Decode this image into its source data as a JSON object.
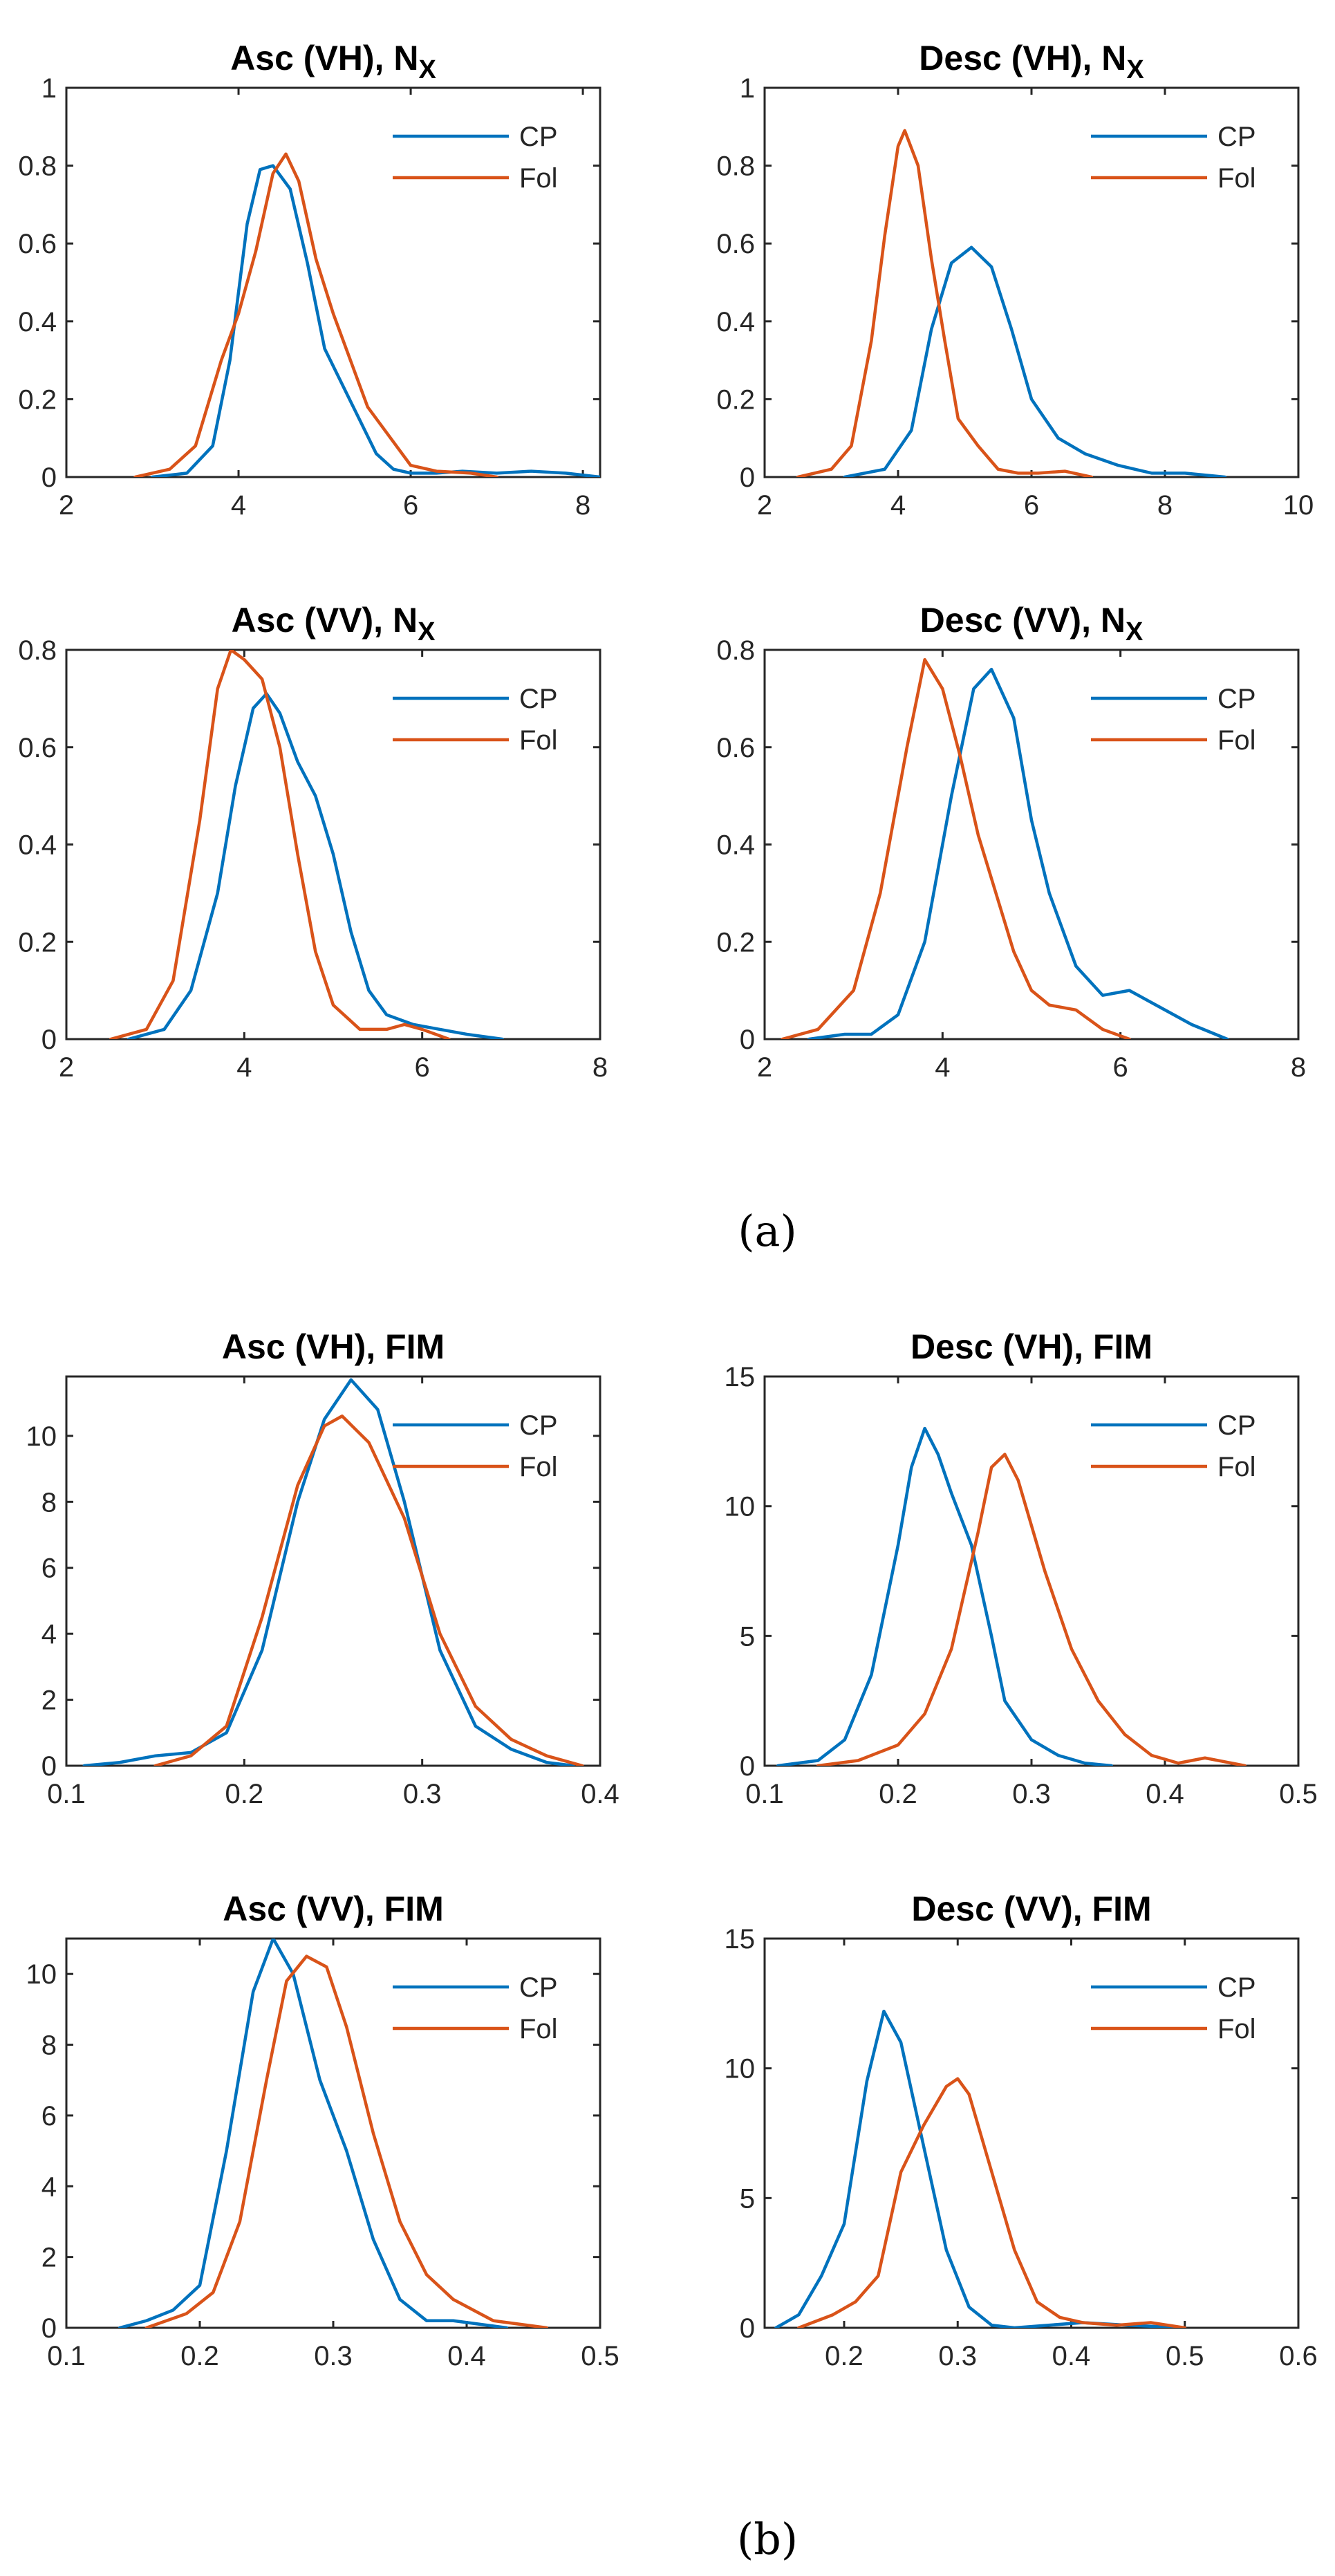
{
  "colors": {
    "cp": "#0072BD",
    "fol": "#D95319"
  },
  "panel_labels": {
    "a": "(a)",
    "b": "(b)"
  },
  "chart_data": [
    {
      "type": "line",
      "title": "Asc (VH), N",
      "title_subscript": "X",
      "xlim": [
        2,
        8.2
      ],
      "ylim": [
        0,
        1
      ],
      "xticks": [
        2,
        4,
        6,
        8
      ],
      "xtick_labels": [
        "2",
        "4",
        "6",
        "8"
      ],
      "yticks": [
        0,
        0.2,
        0.4,
        0.6,
        0.8,
        1
      ],
      "ytick_labels": [
        "0",
        "0.2",
        "0.4",
        "0.6",
        "0.8",
        "1"
      ],
      "legend": [
        "CP",
        "Fol"
      ],
      "series": [
        {
          "name": "CP",
          "color": "#0072BD",
          "x": [
            3.0,
            3.4,
            3.7,
            3.9,
            4.1,
            4.25,
            4.4,
            4.6,
            4.8,
            5.0,
            5.2,
            5.4,
            5.6,
            5.8,
            6.0,
            6.3,
            6.6,
            7.0,
            7.4,
            7.8,
            8.2
          ],
          "y": [
            0,
            0.01,
            0.08,
            0.3,
            0.65,
            0.79,
            0.8,
            0.74,
            0.55,
            0.33,
            0.24,
            0.15,
            0.06,
            0.02,
            0.01,
            0.01,
            0.015,
            0.01,
            0.015,
            0.01,
            0
          ]
        },
        {
          "name": "Fol",
          "color": "#D95319",
          "x": [
            2.8,
            3.2,
            3.5,
            3.8,
            4.0,
            4.2,
            4.4,
            4.55,
            4.7,
            4.9,
            5.1,
            5.3,
            5.5,
            5.7,
            6.0,
            6.3,
            6.7,
            7.0
          ],
          "y": [
            0,
            0.02,
            0.08,
            0.3,
            0.42,
            0.58,
            0.78,
            0.83,
            0.76,
            0.56,
            0.42,
            0.3,
            0.18,
            0.12,
            0.03,
            0.015,
            0.01,
            0
          ]
        }
      ]
    },
    {
      "type": "line",
      "title": "Desc (VH), N",
      "title_subscript": "X",
      "xlim": [
        2,
        10
      ],
      "ylim": [
        0,
        1
      ],
      "xticks": [
        2,
        4,
        6,
        8,
        10
      ],
      "xtick_labels": [
        "2",
        "4",
        "6",
        "8",
        "10"
      ],
      "yticks": [
        0,
        0.2,
        0.4,
        0.6,
        0.8,
        1
      ],
      "ytick_labels": [
        "0",
        "0.2",
        "0.4",
        "0.6",
        "0.8",
        "1"
      ],
      "legend": [
        "CP",
        "Fol"
      ],
      "series": [
        {
          "name": "CP",
          "color": "#0072BD",
          "x": [
            3.2,
            3.8,
            4.2,
            4.5,
            4.8,
            5.1,
            5.4,
            5.7,
            6.0,
            6.4,
            6.8,
            7.3,
            7.8,
            8.3,
            8.9
          ],
          "y": [
            0,
            0.02,
            0.12,
            0.38,
            0.55,
            0.59,
            0.54,
            0.38,
            0.2,
            0.1,
            0.06,
            0.03,
            0.01,
            0.01,
            0
          ]
        },
        {
          "name": "Fol",
          "color": "#D95319",
          "x": [
            2.5,
            3.0,
            3.3,
            3.6,
            3.8,
            4.0,
            4.1,
            4.3,
            4.5,
            4.7,
            4.9,
            5.2,
            5.5,
            5.8,
            6.1,
            6.5,
            6.9
          ],
          "y": [
            0,
            0.02,
            0.08,
            0.35,
            0.62,
            0.85,
            0.89,
            0.8,
            0.56,
            0.35,
            0.15,
            0.08,
            0.02,
            0.01,
            0.01,
            0.015,
            0
          ]
        }
      ]
    },
    {
      "type": "line",
      "title": "Asc (VV), N",
      "title_subscript": "X",
      "xlim": [
        2,
        8
      ],
      "ylim": [
        0,
        0.8
      ],
      "xticks": [
        2,
        4,
        6,
        8
      ],
      "xtick_labels": [
        "2",
        "4",
        "6",
        "8"
      ],
      "yticks": [
        0,
        0.2,
        0.4,
        0.6,
        0.8
      ],
      "ytick_labels": [
        "0",
        "0.2",
        "0.4",
        "0.6",
        "0.8"
      ],
      "legend": [
        "CP",
        "Fol"
      ],
      "series": [
        {
          "name": "CP",
          "color": "#0072BD",
          "x": [
            2.7,
            3.1,
            3.4,
            3.7,
            3.9,
            4.1,
            4.25,
            4.4,
            4.6,
            4.8,
            5.0,
            5.2,
            5.4,
            5.6,
            5.9,
            6.2,
            6.5,
            6.9
          ],
          "y": [
            0,
            0.02,
            0.1,
            0.3,
            0.52,
            0.68,
            0.71,
            0.67,
            0.57,
            0.5,
            0.38,
            0.22,
            0.1,
            0.05,
            0.03,
            0.02,
            0.01,
            0
          ]
        },
        {
          "name": "Fol",
          "color": "#D95319",
          "x": [
            2.5,
            2.9,
            3.2,
            3.5,
            3.7,
            3.85,
            4.0,
            4.2,
            4.4,
            4.6,
            4.8,
            5.0,
            5.3,
            5.6,
            5.8,
            6.0,
            6.3
          ],
          "y": [
            0,
            0.02,
            0.12,
            0.45,
            0.72,
            0.8,
            0.78,
            0.74,
            0.6,
            0.38,
            0.18,
            0.07,
            0.02,
            0.02,
            0.03,
            0.02,
            0
          ]
        }
      ]
    },
    {
      "type": "line",
      "title": "Desc (VV), N",
      "title_subscript": "X",
      "xlim": [
        2,
        8
      ],
      "ylim": [
        0,
        0.8
      ],
      "xticks": [
        2,
        4,
        6,
        8
      ],
      "xtick_labels": [
        "2",
        "4",
        "6",
        "8"
      ],
      "yticks": [
        0,
        0.2,
        0.4,
        0.6,
        0.8
      ],
      "ytick_labels": [
        "0",
        "0.2",
        "0.4",
        "0.6",
        "0.8"
      ],
      "legend": [
        "CP",
        "Fol"
      ],
      "series": [
        {
          "name": "CP",
          "color": "#0072BD",
          "x": [
            2.5,
            2.9,
            3.2,
            3.5,
            3.8,
            4.1,
            4.35,
            4.55,
            4.8,
            5.0,
            5.2,
            5.5,
            5.8,
            6.1,
            6.4,
            6.8,
            7.2
          ],
          "y": [
            0,
            0.01,
            0.01,
            0.05,
            0.2,
            0.5,
            0.72,
            0.76,
            0.66,
            0.45,
            0.3,
            0.15,
            0.09,
            0.1,
            0.07,
            0.03,
            0
          ]
        },
        {
          "name": "Fol",
          "color": "#D95319",
          "x": [
            2.2,
            2.6,
            3.0,
            3.3,
            3.6,
            3.8,
            4.0,
            4.2,
            4.4,
            4.6,
            4.8,
            5.0,
            5.2,
            5.5,
            5.8,
            6.1
          ],
          "y": [
            0,
            0.02,
            0.1,
            0.3,
            0.6,
            0.78,
            0.72,
            0.58,
            0.42,
            0.3,
            0.18,
            0.1,
            0.07,
            0.06,
            0.02,
            0
          ]
        }
      ]
    },
    {
      "type": "line",
      "title": "Asc (VH), FIM",
      "title_subscript": "",
      "xlim": [
        0.1,
        0.4
      ],
      "ylim": [
        0,
        11.8
      ],
      "xticks": [
        0.1,
        0.2,
        0.3,
        0.4
      ],
      "xtick_labels": [
        "0.1",
        "0.2",
        "0.3",
        "0.4"
      ],
      "yticks": [
        0,
        2,
        4,
        6,
        8,
        10
      ],
      "ytick_labels": [
        "0",
        "2",
        "4",
        "6",
        "8",
        "10"
      ],
      "legend": [
        "CP",
        "Fol"
      ],
      "series": [
        {
          "name": "CP",
          "color": "#0072BD",
          "x": [
            0.11,
            0.13,
            0.15,
            0.17,
            0.19,
            0.21,
            0.23,
            0.245,
            0.26,
            0.275,
            0.29,
            0.31,
            0.33,
            0.35,
            0.37,
            0.385
          ],
          "y": [
            0,
            0.1,
            0.3,
            0.4,
            1.0,
            3.5,
            8.0,
            10.5,
            11.7,
            10.8,
            8.0,
            3.5,
            1.2,
            0.5,
            0.1,
            0
          ]
        },
        {
          "name": "Fol",
          "color": "#D95319",
          "x": [
            0.15,
            0.17,
            0.19,
            0.21,
            0.23,
            0.245,
            0.255,
            0.27,
            0.29,
            0.31,
            0.33,
            0.35,
            0.37,
            0.39
          ],
          "y": [
            0,
            0.3,
            1.2,
            4.5,
            8.5,
            10.3,
            10.6,
            9.8,
            7.5,
            4.0,
            1.8,
            0.8,
            0.3,
            0
          ]
        }
      ]
    },
    {
      "type": "line",
      "title": "Desc (VH), FIM",
      "title_subscript": "",
      "xlim": [
        0.1,
        0.5
      ],
      "ylim": [
        0,
        15
      ],
      "xticks": [
        0.1,
        0.2,
        0.3,
        0.4,
        0.5
      ],
      "xtick_labels": [
        "0.1",
        "0.2",
        "0.3",
        "0.4",
        "0.5"
      ],
      "yticks": [
        0,
        5,
        10,
        15
      ],
      "ytick_labels": [
        "0",
        "5",
        "10",
        "15"
      ],
      "legend": [
        "CP",
        "Fol"
      ],
      "series": [
        {
          "name": "CP",
          "color": "#0072BD",
          "x": [
            0.11,
            0.14,
            0.16,
            0.18,
            0.2,
            0.21,
            0.22,
            0.23,
            0.24,
            0.255,
            0.27,
            0.28,
            0.3,
            0.32,
            0.34,
            0.36
          ],
          "y": [
            0,
            0.2,
            1.0,
            3.5,
            8.5,
            11.5,
            13.0,
            12.0,
            10.5,
            8.5,
            5.0,
            2.5,
            1.0,
            0.4,
            0.1,
            0
          ]
        },
        {
          "name": "Fol",
          "color": "#D95319",
          "x": [
            0.14,
            0.17,
            0.2,
            0.22,
            0.24,
            0.26,
            0.27,
            0.28,
            0.29,
            0.31,
            0.33,
            0.35,
            0.37,
            0.39,
            0.41,
            0.43,
            0.45,
            0.46
          ],
          "y": [
            0,
            0.2,
            0.8,
            2.0,
            4.5,
            9.0,
            11.5,
            12.0,
            11.0,
            7.5,
            4.5,
            2.5,
            1.2,
            0.4,
            0.1,
            0.3,
            0.1,
            0
          ]
        }
      ]
    },
    {
      "type": "line",
      "title": "Asc (VV), FIM",
      "title_subscript": "",
      "xlim": [
        0.1,
        0.5
      ],
      "ylim": [
        0,
        11
      ],
      "xticks": [
        0.1,
        0.2,
        0.3,
        0.4,
        0.5
      ],
      "xtick_labels": [
        "0.1",
        "0.2",
        "0.3",
        "0.4",
        "0.5"
      ],
      "yticks": [
        0,
        2,
        4,
        6,
        8,
        10
      ],
      "ytick_labels": [
        "0",
        "2",
        "4",
        "6",
        "8",
        "10"
      ],
      "legend": [
        "CP",
        "Fol"
      ],
      "series": [
        {
          "name": "CP",
          "color": "#0072BD",
          "x": [
            0.14,
            0.16,
            0.18,
            0.2,
            0.22,
            0.24,
            0.255,
            0.27,
            0.29,
            0.31,
            0.33,
            0.35,
            0.37,
            0.39,
            0.41,
            0.43
          ],
          "y": [
            0,
            0.2,
            0.5,
            1.2,
            5.0,
            9.5,
            11.0,
            10.0,
            7.0,
            5.0,
            2.5,
            0.8,
            0.2,
            0.2,
            0.1,
            0
          ]
        },
        {
          "name": "Fol",
          "color": "#D95319",
          "x": [
            0.16,
            0.19,
            0.21,
            0.23,
            0.25,
            0.265,
            0.28,
            0.295,
            0.31,
            0.33,
            0.35,
            0.37,
            0.39,
            0.42,
            0.46
          ],
          "y": [
            0,
            0.4,
            1.0,
            3.0,
            7.0,
            9.8,
            10.5,
            10.2,
            8.5,
            5.5,
            3.0,
            1.5,
            0.8,
            0.2,
            0
          ]
        }
      ]
    },
    {
      "type": "line",
      "title": "Desc (VV), FIM",
      "title_subscript": "",
      "xlim": [
        0.13,
        0.6
      ],
      "ylim": [
        0,
        15
      ],
      "xticks": [
        0.2,
        0.3,
        0.4,
        0.5,
        0.6
      ],
      "xtick_labels": [
        "0.2",
        "0.3",
        "0.4",
        "0.5",
        "0.6"
      ],
      "yticks": [
        0,
        5,
        10,
        15
      ],
      "ytick_labels": [
        "0",
        "5",
        "10",
        "15"
      ],
      "legend": [
        "CP",
        "Fol"
      ],
      "series": [
        {
          "name": "CP",
          "color": "#0072BD",
          "x": [
            0.14,
            0.16,
            0.18,
            0.2,
            0.22,
            0.235,
            0.25,
            0.27,
            0.29,
            0.31,
            0.33,
            0.35,
            0.38,
            0.41,
            0.45,
            0.5
          ],
          "y": [
            0,
            0.5,
            2.0,
            4.0,
            9.5,
            12.2,
            11.0,
            7.0,
            3.0,
            0.8,
            0.1,
            0,
            0.1,
            0.2,
            0.1,
            0
          ]
        },
        {
          "name": "Fol",
          "color": "#D95319",
          "x": [
            0.16,
            0.19,
            0.21,
            0.23,
            0.25,
            0.27,
            0.29,
            0.3,
            0.31,
            0.33,
            0.35,
            0.37,
            0.39,
            0.41,
            0.44,
            0.47,
            0.5
          ],
          "y": [
            0,
            0.5,
            1.0,
            2.0,
            6.0,
            7.8,
            9.3,
            9.6,
            9.0,
            6.0,
            3.0,
            1.0,
            0.4,
            0.2,
            0.1,
            0.2,
            0
          ]
        }
      ]
    }
  ]
}
